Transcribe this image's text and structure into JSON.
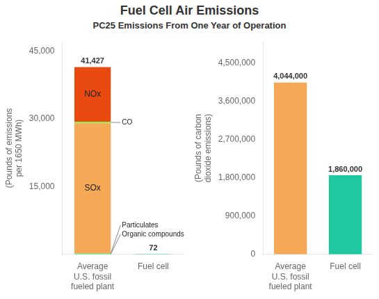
{
  "title": "Fuel Cell Air Emissions",
  "subtitle": "PC25 Emissions From One Year of Operation",
  "chart_data": [
    {
      "type": "bar",
      "stacked": true,
      "grid": false,
      "ylabel": "(Pounds of emissions\nper 1650 MWh)",
      "categories": [
        "Average\nU.S. fossil\nfueled plant",
        "Fuel cell"
      ],
      "series": [
        {
          "name": "Organic compounds",
          "color": "#6699FF",
          "values": [
            100,
            null
          ]
        },
        {
          "name": "Particulates",
          "color": "#90EE50",
          "values": [
            180,
            null
          ]
        },
        {
          "name": "SOx",
          "color": "#F5A855",
          "values": [
            28720,
            null
          ]
        },
        {
          "name": "CO",
          "color": "#90EE50",
          "values": [
            350,
            null
          ]
        },
        {
          "name": "NOx",
          "color": "#E84A10",
          "values": [
            12077,
            null
          ]
        },
        {
          "color": "#20C8A0",
          "values": [
            null,
            72
          ]
        }
      ],
      "total_labels": [
        "41,427",
        "72"
      ],
      "ylim": [
        0,
        47000
      ],
      "yticks": [
        {
          "value": 0,
          "label": ""
        },
        {
          "value": 15000,
          "label": "15,000"
        },
        {
          "value": 30000,
          "label": "30,000"
        },
        {
          "value": 45000,
          "label": "45,000"
        }
      ]
    },
    {
      "type": "bar",
      "grid": false,
      "ylabel": "(Pounds of carbon\ndioxide emissions)",
      "categories": [
        "Average\nU.S. fossil\nfueled plant",
        "Fuel cell"
      ],
      "values": [
        4044000,
        1860000
      ],
      "colors": [
        "#F5A855",
        "#20C8A0"
      ],
      "data_labels": true,
      "value_labels": [
        "4,044,000",
        "1,860,000"
      ],
      "ylim": [
        0,
        5000000
      ],
      "yticks": [
        0,
        {
          "value": 900000,
          "label": "900,000"
        },
        {
          "value": 1800000,
          "label": "1,800,000"
        },
        {
          "value": 2700000,
          "label": "2,700,000"
        },
        {
          "value": 3600000,
          "label": "3,600,000"
        },
        {
          "value": 4500000,
          "label": "4,500,000"
        }
      ]
    }
  ]
}
